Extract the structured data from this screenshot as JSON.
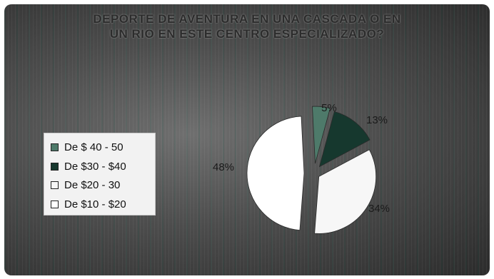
{
  "chart_data": {
    "type": "pie",
    "title_lines": [
      "",
      "DEPORTE DE AVENTURA EN UNA CASCADA O EN",
      "UN RIO EN ESTE CENTRO ESPECIALIZADO?"
    ],
    "series": [
      {
        "name": "De $ 40 - 50",
        "value": 5,
        "label": "5%",
        "color": "#4e7a6a"
      },
      {
        "name": "De $30 - $40",
        "value": 13,
        "label": "13%",
        "color": "#16382e"
      },
      {
        "name": "De $20 - 30",
        "value": 34,
        "label": "34%",
        "color": "#f7f7f7"
      },
      {
        "name": "De $10 - $20",
        "value": 48,
        "label": "48%",
        "color": "#ffffff"
      }
    ],
    "legend_position": "left"
  }
}
